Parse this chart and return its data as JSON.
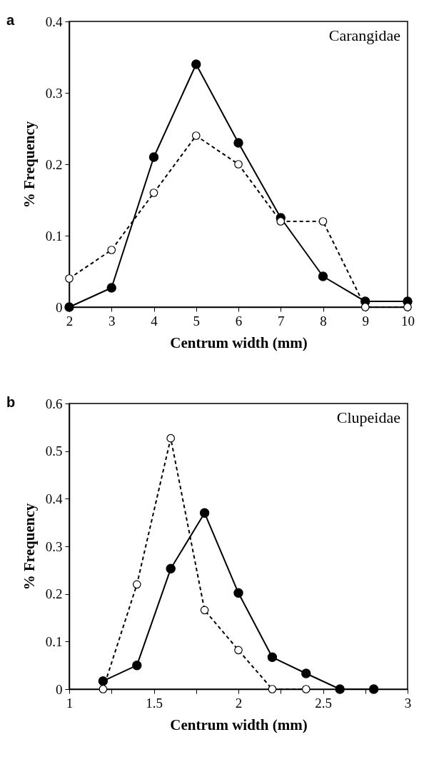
{
  "chart_data": [
    {
      "type": "line",
      "title": "a",
      "xlabel": "Centrum width (mm)",
      "ylabel": "% Frequency",
      "annotations": [
        "Carangidae"
      ],
      "x": [
        2,
        3,
        4,
        5,
        6,
        7,
        8,
        9,
        10
      ],
      "xlim": [
        2,
        10
      ],
      "xticks": [
        2,
        3,
        4,
        5,
        6,
        7,
        8,
        9,
        10
      ],
      "ylim": [
        0,
        0.4
      ],
      "yticks": [
        0,
        0.1,
        0.2,
        0.3,
        0.4
      ],
      "grid": false,
      "series": [
        {
          "color": "#000000",
          "line_style": "solid",
          "marker": "circle",
          "values": [
            0,
            0.027,
            0.21,
            0.34,
            0.23,
            0.125,
            0.043,
            0.008,
            0.008
          ]
        },
        {
          "color": "#000000",
          "line_style": "dashed",
          "marker": "circle-open",
          "values": [
            0.04,
            0.08,
            0.16,
            0.24,
            0.2,
            0.12,
            0.12,
            0,
            0
          ]
        }
      ]
    },
    {
      "type": "line",
      "title": "b",
      "xlabel": "Centrum width (mm)",
      "ylabel": "% Frequency",
      "annotations": [
        "Clupeidae"
      ],
      "x": [
        1.2,
        1.4,
        1.6,
        1.8,
        2.0,
        2.2,
        2.4,
        2.6,
        2.8
      ],
      "xlim": [
        1,
        3
      ],
      "xticks": [
        1,
        {
          "value": 1.25,
          "label": null
        },
        1.5,
        {
          "value": 1.75,
          "label": null
        },
        2,
        {
          "value": 2.25,
          "label": null
        },
        2.5,
        {
          "value": 2.75,
          "label": null
        },
        3
      ],
      "ylim": [
        0,
        0.6
      ],
      "yticks": [
        0,
        0.1,
        0.2,
        0.3,
        0.4,
        0.5,
        0.6
      ],
      "grid": false,
      "series": [
        {
          "color": "#000000",
          "line_style": "solid",
          "marker": "circle",
          "values": [
            0.017,
            0.05,
            0.253,
            0.37,
            0.202,
            0.067,
            0.033,
            0,
            0
          ]
        },
        {
          "color": "#000000",
          "line_style": "dashed",
          "marker": "circle-open",
          "values": [
            0,
            0.22,
            0.527,
            0.166,
            0.082,
            0,
            0,
            null,
            null
          ]
        }
      ]
    }
  ]
}
